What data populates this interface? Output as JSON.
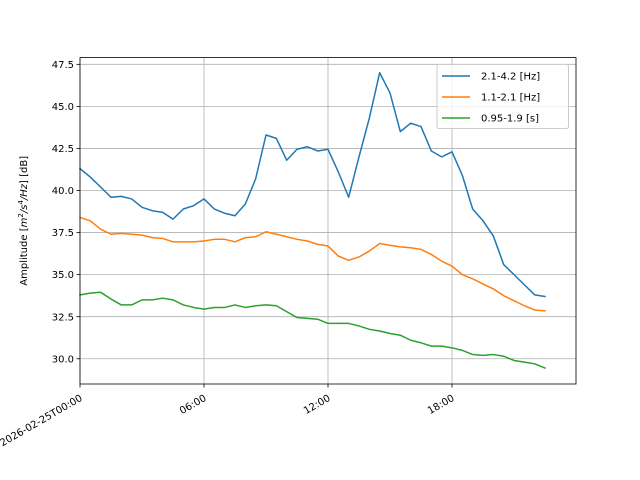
{
  "chart_data": {
    "type": "line",
    "ylabel": "Amplitude [m²/s⁴/Hz] [dB]",
    "ylabel_parts": {
      "prefix": "Amplitude [",
      "m": "m",
      "sup2": "2",
      "s": "/s",
      "sup4": "4",
      "hz": "/Hz",
      "suffix": "] [dB]"
    },
    "xlim_hours": [
      -0.0,
      24.0
    ],
    "ylim": [
      28.5,
      47.9
    ],
    "grid": true,
    "legend_position": "upper right",
    "x_ticks": [
      {
        "hour": 0,
        "label": "2026-02-25T00:00"
      },
      {
        "hour": 6,
        "label": "06:00"
      },
      {
        "hour": 12,
        "label": "12:00"
      },
      {
        "hour": 18,
        "label": "18:00"
      }
    ],
    "y_ticks": [
      {
        "value": 30.0,
        "label": "30.0"
      },
      {
        "value": 32.5,
        "label": "32.5"
      },
      {
        "value": 35.0,
        "label": "35.0"
      },
      {
        "value": 37.5,
        "label": "37.5"
      },
      {
        "value": 40.0,
        "label": "40.0"
      },
      {
        "value": 42.5,
        "label": "42.5"
      },
      {
        "value": 45.0,
        "label": "45.0"
      },
      {
        "value": 47.5,
        "label": "47.5"
      }
    ],
    "series": [
      {
        "name": "2.1-4.2 [Hz]",
        "color": "#1f77b4",
        "points": [
          [
            0.0,
            41.3
          ],
          [
            0.5,
            40.8
          ],
          [
            1.0,
            40.2
          ],
          [
            1.5,
            39.6
          ],
          [
            2.0,
            39.65
          ],
          [
            2.5,
            39.5
          ],
          [
            3.0,
            39.0
          ],
          [
            3.5,
            38.8
          ],
          [
            4.0,
            38.7
          ],
          [
            4.5,
            38.3
          ],
          [
            5.0,
            38.9
          ],
          [
            5.5,
            39.1
          ],
          [
            6.0,
            39.5
          ],
          [
            6.5,
            38.9
          ],
          [
            7.0,
            38.65
          ],
          [
            7.5,
            38.5
          ],
          [
            8.0,
            39.2
          ],
          [
            8.5,
            40.7
          ],
          [
            9.0,
            43.3
          ],
          [
            9.5,
            43.1
          ],
          [
            10.0,
            41.8
          ],
          [
            10.5,
            42.45
          ],
          [
            11.0,
            42.6
          ],
          [
            11.5,
            42.35
          ],
          [
            12.0,
            42.45
          ],
          [
            12.5,
            41.1
          ],
          [
            13.0,
            39.6
          ],
          [
            13.5,
            42.0
          ],
          [
            14.0,
            44.3
          ],
          [
            14.5,
            47.0
          ],
          [
            15.0,
            45.8
          ],
          [
            15.5,
            43.5
          ],
          [
            16.0,
            44.0
          ],
          [
            16.5,
            43.8
          ],
          [
            17.0,
            42.35
          ],
          [
            17.5,
            42.0
          ],
          [
            18.0,
            42.3
          ],
          [
            18.5,
            40.9
          ],
          [
            19.0,
            38.9
          ],
          [
            19.5,
            38.2
          ],
          [
            20.0,
            37.3
          ],
          [
            20.5,
            35.6
          ],
          [
            21.0,
            35.0
          ],
          [
            21.5,
            34.4
          ],
          [
            22.0,
            33.8
          ],
          [
            22.5,
            33.7
          ]
        ]
      },
      {
        "name": "1.1-2.1 [Hz]",
        "color": "#ff7f0e",
        "points": [
          [
            0.0,
            38.4
          ],
          [
            0.5,
            38.2
          ],
          [
            1.0,
            37.7
          ],
          [
            1.5,
            37.4
          ],
          [
            2.0,
            37.45
          ],
          [
            2.5,
            37.4
          ],
          [
            3.0,
            37.35
          ],
          [
            3.5,
            37.2
          ],
          [
            4.0,
            37.15
          ],
          [
            4.5,
            36.95
          ],
          [
            5.0,
            36.95
          ],
          [
            5.5,
            36.95
          ],
          [
            6.0,
            37.0
          ],
          [
            6.5,
            37.1
          ],
          [
            7.0,
            37.1
          ],
          [
            7.5,
            36.95
          ],
          [
            8.0,
            37.2
          ],
          [
            8.5,
            37.25
          ],
          [
            9.0,
            37.55
          ],
          [
            9.5,
            37.4
          ],
          [
            10.0,
            37.25
          ],
          [
            10.5,
            37.1
          ],
          [
            11.0,
            37.0
          ],
          [
            11.5,
            36.8
          ],
          [
            12.0,
            36.7
          ],
          [
            12.5,
            36.1
          ],
          [
            13.0,
            35.85
          ],
          [
            13.5,
            36.05
          ],
          [
            14.0,
            36.4
          ],
          [
            14.5,
            36.85
          ],
          [
            15.0,
            36.75
          ],
          [
            15.5,
            36.65
          ],
          [
            16.0,
            36.6
          ],
          [
            16.5,
            36.5
          ],
          [
            17.0,
            36.2
          ],
          [
            17.5,
            35.8
          ],
          [
            18.0,
            35.5
          ],
          [
            18.5,
            35.0
          ],
          [
            19.0,
            34.75
          ],
          [
            19.5,
            34.45
          ],
          [
            20.0,
            34.15
          ],
          [
            20.5,
            33.75
          ],
          [
            21.0,
            33.45
          ],
          [
            21.5,
            33.15
          ],
          [
            22.0,
            32.9
          ],
          [
            22.5,
            32.85
          ]
        ]
      },
      {
        "name": "0.95-1.9 [s]",
        "color": "#2ca02c",
        "points": [
          [
            0.0,
            33.8
          ],
          [
            0.5,
            33.9
          ],
          [
            1.0,
            33.95
          ],
          [
            1.5,
            33.55
          ],
          [
            2.0,
            33.2
          ],
          [
            2.5,
            33.2
          ],
          [
            3.0,
            33.5
          ],
          [
            3.5,
            33.5
          ],
          [
            4.0,
            33.6
          ],
          [
            4.5,
            33.5
          ],
          [
            5.0,
            33.2
          ],
          [
            5.5,
            33.05
          ],
          [
            6.0,
            32.95
          ],
          [
            6.5,
            33.05
          ],
          [
            7.0,
            33.05
          ],
          [
            7.5,
            33.2
          ],
          [
            8.0,
            33.05
          ],
          [
            8.5,
            33.15
          ],
          [
            9.0,
            33.2
          ],
          [
            9.5,
            33.15
          ],
          [
            10.0,
            32.8
          ],
          [
            10.5,
            32.45
          ],
          [
            11.0,
            32.4
          ],
          [
            11.5,
            32.35
          ],
          [
            12.0,
            32.1
          ],
          [
            12.5,
            32.1
          ],
          [
            13.0,
            32.1
          ],
          [
            13.5,
            31.95
          ],
          [
            14.0,
            31.75
          ],
          [
            14.5,
            31.65
          ],
          [
            15.0,
            31.5
          ],
          [
            15.5,
            31.4
          ],
          [
            16.0,
            31.1
          ],
          [
            16.5,
            30.95
          ],
          [
            17.0,
            30.75
          ],
          [
            17.5,
            30.75
          ],
          [
            18.0,
            30.65
          ],
          [
            18.5,
            30.5
          ],
          [
            19.0,
            30.25
          ],
          [
            19.5,
            30.2
          ],
          [
            20.0,
            30.25
          ],
          [
            20.5,
            30.15
          ],
          [
            21.0,
            29.9
          ],
          [
            21.5,
            29.8
          ],
          [
            22.0,
            29.7
          ],
          [
            22.5,
            29.45
          ]
        ]
      }
    ]
  }
}
